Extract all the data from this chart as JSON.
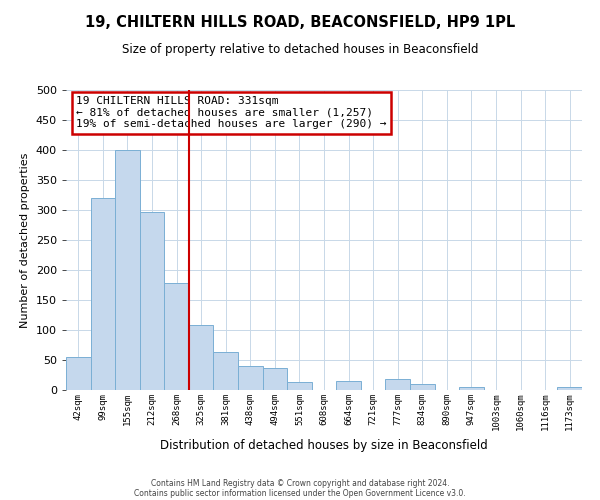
{
  "title": "19, CHILTERN HILLS ROAD, BEACONSFIELD, HP9 1PL",
  "subtitle": "Size of property relative to detached houses in Beaconsfield",
  "xlabel": "Distribution of detached houses by size in Beaconsfield",
  "ylabel": "Number of detached properties",
  "footer_line1": "Contains HM Land Registry data © Crown copyright and database right 2024.",
  "footer_line2": "Contains public sector information licensed under the Open Government Licence v3.0.",
  "bin_labels": [
    "42sqm",
    "99sqm",
    "155sqm",
    "212sqm",
    "268sqm",
    "325sqm",
    "381sqm",
    "438sqm",
    "494sqm",
    "551sqm",
    "608sqm",
    "664sqm",
    "721sqm",
    "777sqm",
    "834sqm",
    "890sqm",
    "947sqm",
    "1003sqm",
    "1060sqm",
    "1116sqm",
    "1173sqm"
  ],
  "bar_heights": [
    55,
    320,
    400,
    297,
    178,
    108,
    63,
    40,
    37,
    13,
    0,
    15,
    0,
    18,
    10,
    0,
    5,
    0,
    0,
    0,
    5
  ],
  "bar_color": "#c5d8ed",
  "bar_edge_color": "#7aafd4",
  "ylim": [
    0,
    500
  ],
  "yticks": [
    0,
    50,
    100,
    150,
    200,
    250,
    300,
    350,
    400,
    450,
    500
  ],
  "vline_x_index": 5,
  "vline_color": "#cc0000",
  "annotation_title": "19 CHILTERN HILLS ROAD: 331sqm",
  "annotation_line1": "← 81% of detached houses are smaller (1,257)",
  "annotation_line2": "19% of semi-detached houses are larger (290) →",
  "annotation_box_color": "#cc0000",
  "background_color": "#ffffff",
  "grid_color": "#c8d8e8"
}
